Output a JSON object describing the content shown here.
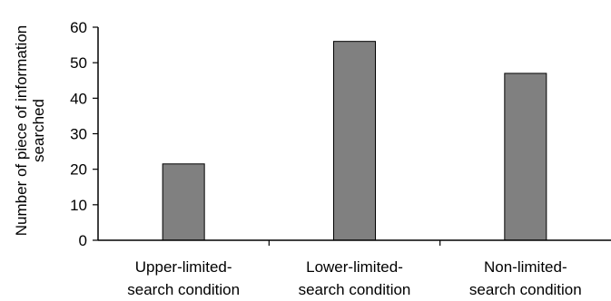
{
  "chart_data": {
    "type": "bar",
    "title": "",
    "xlabel": "",
    "ylabel": "Number of piece of information searched",
    "ylabel_lines": [
      "Number of piece of information",
      "searched"
    ],
    "categories": [
      "Upper-limited-search condition",
      "Lower-limited-search condition",
      "Non-limited-search condition"
    ],
    "category_lines": [
      [
        "Upper-limited-",
        "search condition"
      ],
      [
        "Lower-limited-",
        "search condition"
      ],
      [
        "Non-limited-",
        "search condition"
      ]
    ],
    "values": [
      21.5,
      56,
      47
    ],
    "ylim": [
      0,
      60
    ],
    "yticks": [
      0,
      10,
      20,
      30,
      40,
      50,
      60
    ],
    "grid": false,
    "legend": "none",
    "bar_color": "#808080",
    "bar_edge_color": "#000000"
  }
}
